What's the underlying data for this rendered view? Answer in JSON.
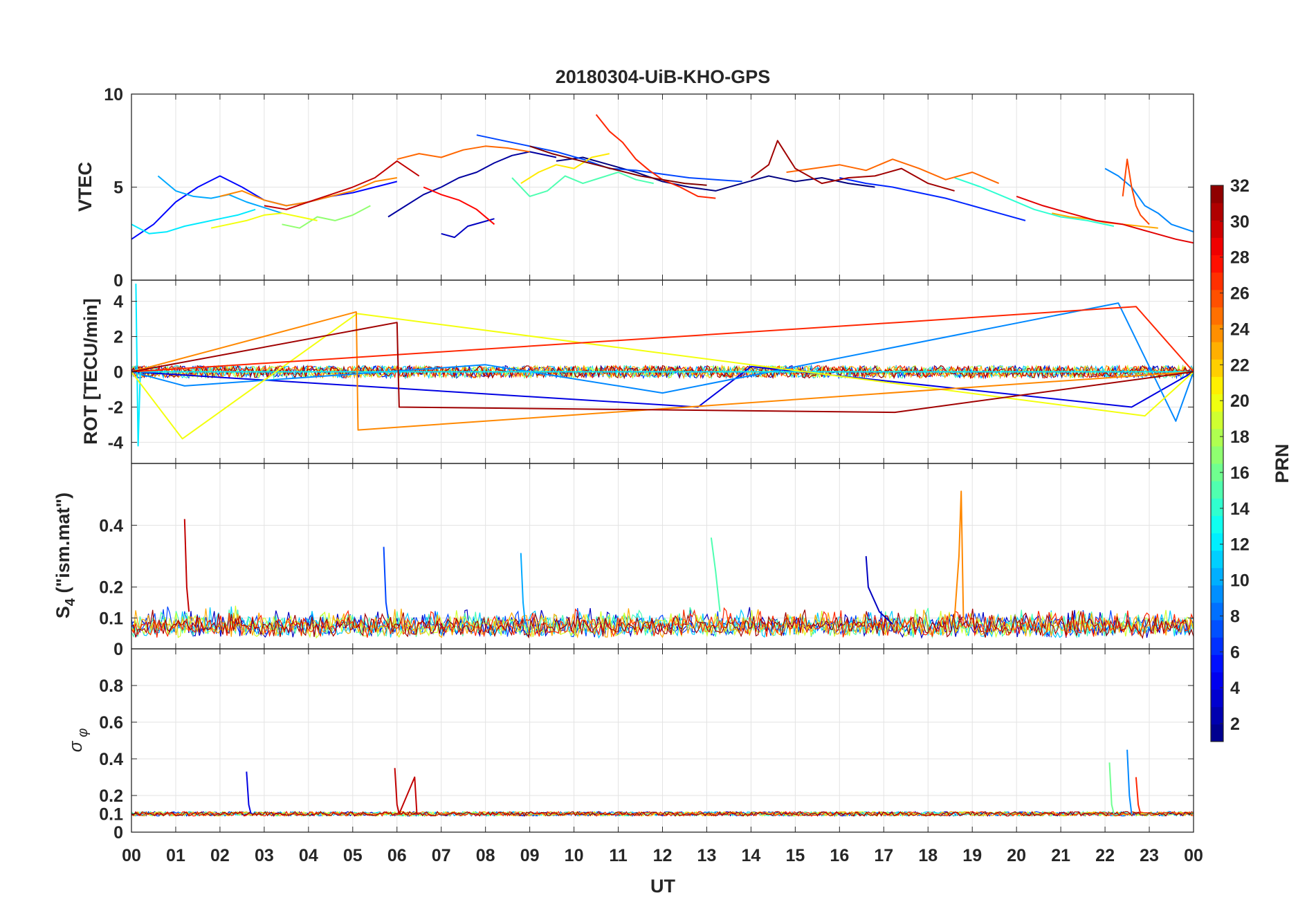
{
  "chart_data": {
    "type": "line",
    "title": "20180304-UiB-KHO-GPS",
    "xlabel": "UT",
    "x_ticks": [
      "00",
      "01",
      "02",
      "03",
      "04",
      "05",
      "06",
      "07",
      "08",
      "09",
      "10",
      "11",
      "12",
      "13",
      "14",
      "15",
      "16",
      "17",
      "18",
      "19",
      "20",
      "21",
      "22",
      "23",
      "00"
    ],
    "xlim": [
      0,
      24
    ],
    "colorbar": {
      "label": "PRN",
      "range": [
        1,
        32
      ],
      "ticks": [
        2,
        4,
        6,
        8,
        10,
        12,
        14,
        16,
        18,
        20,
        22,
        24,
        26,
        28,
        30,
        32
      ],
      "colormap": "jet",
      "colors": [
        "#00008f",
        "#0000ff",
        "#0080ff",
        "#00ffff",
        "#80ff80",
        "#ffff00",
        "#ff8000",
        "#ff0000",
        "#800000"
      ]
    },
    "panels": [
      {
        "id": "vtec",
        "ylabel": "VTEC",
        "ylim": [
          0,
          10
        ],
        "y_ticks": [
          0,
          5,
          10
        ],
        "series": [
          {
            "prn": 1,
            "x": [
              9.6,
              10.2,
              10.8,
              11.4,
              12.0,
              12.6,
              13.2,
              13.8,
              14.4,
              15.0,
              15.6,
              16.2,
              16.8
            ],
            "values": [
              6.4,
              6.6,
              6.2,
              5.8,
              5.3,
              5.0,
              4.8,
              5.2,
              5.6,
              5.3,
              5.5,
              5.2,
              5.0
            ]
          },
          {
            "prn": 2,
            "x": [
              5.8,
              6.2,
              6.6,
              7.0,
              7.4,
              7.8,
              8.2,
              8.6,
              9.0,
              9.6
            ],
            "values": [
              3.4,
              4.0,
              4.6,
              5.0,
              5.5,
              5.8,
              6.3,
              6.7,
              6.9,
              6.6
            ]
          },
          {
            "prn": 3,
            "x": [
              7.0,
              7.3,
              7.6,
              7.9,
              8.2
            ],
            "values": [
              2.5,
              2.3,
              2.9,
              3.1,
              3.3
            ]
          },
          {
            "prn": 5,
            "x": [
              0.0,
              0.5,
              1.0,
              1.5,
              2.0,
              2.5,
              3.0,
              3.5,
              4.0,
              4.5,
              5.0,
              5.5,
              6.0
            ],
            "values": [
              2.2,
              3.0,
              4.2,
              5.0,
              5.6,
              5.0,
              4.3,
              4.0,
              4.2,
              4.5,
              4.7,
              5.0,
              5.3
            ]
          },
          {
            "prn": 6,
            "x": [
              16.0,
              16.6,
              17.2,
              17.8,
              18.4,
              19.0,
              19.6,
              20.2
            ],
            "values": [
              5.5,
              5.2,
              5.0,
              4.7,
              4.4,
              4.0,
              3.6,
              3.2
            ]
          },
          {
            "prn": 7,
            "x": [
              7.8,
              8.4,
              9.0,
              9.6,
              10.2,
              10.8,
              11.4,
              12.0,
              12.6,
              13.2,
              13.8
            ],
            "values": [
              7.8,
              7.5,
              7.2,
              6.9,
              6.5,
              6.0,
              5.9,
              5.7,
              5.5,
              5.4,
              5.3
            ]
          },
          {
            "prn": 9,
            "x": [
              22.0,
              22.3,
              22.6,
              22.9,
              23.2,
              23.5,
              24.0
            ],
            "values": [
              6.0,
              5.6,
              5.0,
              4.0,
              3.6,
              3.0,
              2.6
            ]
          },
          {
            "prn": 10,
            "x": [
              0.6,
              1.0,
              1.4,
              1.8,
              2.2,
              2.6,
              3.0,
              3.4
            ],
            "values": [
              5.6,
              4.8,
              4.5,
              4.4,
              4.6,
              4.2,
              3.9,
              3.6
            ]
          },
          {
            "prn": 12,
            "x": [
              0.0,
              0.4,
              0.8,
              1.2,
              1.6,
              2.0,
              2.4,
              2.8
            ],
            "values": [
              3.0,
              2.5,
              2.6,
              2.9,
              3.1,
              3.3,
              3.5,
              3.8
            ]
          },
          {
            "prn": 14,
            "x": [
              18.6,
              19.2,
              19.8,
              20.4,
              21.0,
              21.6,
              22.2
            ],
            "values": [
              5.5,
              5.0,
              4.4,
              3.8,
              3.4,
              3.2,
              2.9
            ]
          },
          {
            "prn": 15,
            "x": [
              8.6,
              9.0,
              9.4,
              9.8,
              10.2,
              10.6,
              11.0,
              11.4,
              11.8
            ],
            "values": [
              5.5,
              4.5,
              4.8,
              5.6,
              5.2,
              5.5,
              5.8,
              5.4,
              5.2
            ]
          },
          {
            "prn": 17,
            "x": [
              3.4,
              3.8,
              4.2,
              4.6,
              5.0,
              5.4
            ],
            "values": [
              3.0,
              2.8,
              3.4,
              3.2,
              3.5,
              4.0
            ]
          },
          {
            "prn": 20,
            "x": [
              1.8,
              2.2,
              2.6,
              3.0,
              3.4,
              3.8,
              4.2
            ],
            "values": [
              2.8,
              3.0,
              3.2,
              3.5,
              3.6,
              3.4,
              3.2
            ]
          },
          {
            "prn": 21,
            "x": [
              8.8,
              9.2,
              9.6,
              10.0,
              10.4,
              10.8
            ],
            "values": [
              5.2,
              5.8,
              6.2,
              6.0,
              6.6,
              6.8
            ]
          },
          {
            "prn": 23,
            "x": [
              20.8,
              21.2,
              21.6,
              22.0,
              22.4,
              22.8,
              23.2
            ],
            "values": [
              3.6,
              3.4,
              3.3,
              3.1,
              3.0,
              2.9,
              2.8
            ]
          },
          {
            "prn": 24,
            "x": [
              2.0,
              2.5,
              3.0,
              3.5,
              4.0,
              4.5,
              5.0,
              5.5,
              6.0
            ],
            "values": [
              4.5,
              4.8,
              4.3,
              4.0,
              4.2,
              4.5,
              4.8,
              5.3,
              5.5
            ]
          },
          {
            "prn": 25,
            "x": [
              6.0,
              6.5,
              7.0,
              7.5,
              8.0,
              8.5,
              9.0
            ],
            "values": [
              6.5,
              6.8,
              6.6,
              7.0,
              7.2,
              7.1,
              6.9
            ]
          },
          {
            "prn": 25,
            "x": [
              14.8,
              15.4,
              16.0,
              16.6,
              17.2,
              17.8,
              18.4,
              19.0,
              19.6
            ],
            "values": [
              5.8,
              6.0,
              6.2,
              5.9,
              6.5,
              6.0,
              5.4,
              5.8,
              5.2
            ]
          },
          {
            "prn": 26,
            "x": [
              22.4,
              22.5,
              22.6,
              22.7,
              22.8,
              23.0
            ],
            "values": [
              4.5,
              6.5,
              5.0,
              4.0,
              3.5,
              3.0
            ]
          },
          {
            "prn": 27,
            "x": [
              10.5,
              10.8,
              11.1,
              11.4,
              11.7,
              12.0,
              12.4,
              12.8,
              13.2
            ],
            "values": [
              8.9,
              8.0,
              7.4,
              6.5,
              5.9,
              5.4,
              5.0,
              4.5,
              4.4
            ]
          },
          {
            "prn": 28,
            "x": [
              6.6,
              7.0,
              7.4,
              7.8,
              8.2
            ],
            "values": [
              5.0,
              4.6,
              4.3,
              3.8,
              3.0
            ]
          },
          {
            "prn": 29,
            "x": [
              20.0,
              20.6,
              21.2,
              21.8,
              22.4,
              23.0,
              23.6,
              24.0
            ],
            "values": [
              4.5,
              4.0,
              3.6,
              3.2,
              3.0,
              2.6,
              2.2,
              2.0
            ]
          },
          {
            "prn": 30,
            "x": [
              3.0,
              3.5,
              4.0,
              4.5,
              5.0,
              5.5,
              6.0,
              6.5
            ],
            "values": [
              4.0,
              3.8,
              4.2,
              4.6,
              5.0,
              5.5,
              6.4,
              5.6
            ]
          },
          {
            "prn": 31,
            "x": [
              14.0,
              14.4,
              14.6,
              15.0,
              15.6,
              16.2,
              16.8,
              17.4,
              18.0,
              18.6
            ],
            "values": [
              5.5,
              6.2,
              7.5,
              6.0,
              5.2,
              5.5,
              5.6,
              6.0,
              5.2,
              4.8
            ]
          },
          {
            "prn": 32,
            "x": [
              9.0,
              9.5,
              10.0,
              10.5,
              11.0,
              11.5,
              12.0,
              12.5,
              13.0
            ],
            "values": [
              7.2,
              6.8,
              6.5,
              6.2,
              5.9,
              5.6,
              5.4,
              5.2,
              5.1
            ]
          }
        ]
      },
      {
        "id": "rot",
        "ylabel": "ROT [TECU/min]",
        "ylim": [
          -5.2,
          5.2
        ],
        "y_ticks": [
          -4,
          -2,
          0,
          2,
          4
        ],
        "series": [
          {
            "prn": 4,
            "x": [
              0.0,
              12.8,
              14.0,
              22.6,
              24.0
            ],
            "values": [
              0.0,
              -2.0,
              0.3,
              -2.0,
              0.0
            ]
          },
          {
            "prn": 9,
            "x": [
              0.0,
              1.2,
              8.0,
              12.0,
              22.3,
              23.6,
              24.0
            ],
            "values": [
              0.0,
              -0.8,
              0.4,
              -1.2,
              3.9,
              -2.8,
              0.0
            ]
          },
          {
            "prn": 12,
            "x": [
              0.1,
              0.15,
              0.2,
              24.0
            ],
            "values": [
              5.0,
              -4.2,
              0.0,
              0.0
            ]
          },
          {
            "prn": 20,
            "x": [
              0.0,
              1.15,
              5.1,
              22.9,
              24.0
            ],
            "values": [
              0.0,
              -3.8,
              3.3,
              -2.5,
              0.0
            ]
          },
          {
            "prn": 24,
            "x": [
              0.0,
              5.08,
              5.12,
              24.0
            ],
            "values": [
              0.0,
              3.4,
              -3.3,
              0.0
            ]
          },
          {
            "prn": 27,
            "x": [
              0.0,
              17.3,
              22.7,
              24.0
            ],
            "values": [
              0.0,
              2.8,
              3.7,
              0.0
            ]
          },
          {
            "prn": 31,
            "x": [
              0.0,
              6.0,
              6.05,
              17.25,
              24.0
            ],
            "values": [
              0.0,
              2.8,
              -2.0,
              -2.3,
              0.0
            ]
          }
        ]
      },
      {
        "id": "s4",
        "ylabel": "S4 (\"ism.mat\")",
        "ylabel_main": "S",
        "ylabel_sub": "4",
        "ylabel_rest": " (\"ism.mat\")",
        "ylim": [
          0,
          0.6
        ],
        "y_ticks": [
          0,
          0.1,
          0.2,
          0.4
        ],
        "series": [
          {
            "prn": 24,
            "x": [
              18.6,
              18.65,
              18.7,
              18.75,
              18.8
            ],
            "values": [
              0.1,
              0.2,
              0.3,
              0.51,
              0.1
            ]
          },
          {
            "prn": 30,
            "x": [
              1.2,
              1.25,
              1.3
            ],
            "values": [
              0.42,
              0.2,
              0.12
            ]
          },
          {
            "prn": 15,
            "x": [
              13.1,
              13.2,
              13.3
            ],
            "values": [
              0.36,
              0.25,
              0.12
            ]
          },
          {
            "prn": 7,
            "x": [
              5.7,
              5.75,
              5.8
            ],
            "values": [
              0.33,
              0.15,
              0.1
            ]
          },
          {
            "prn": 10,
            "x": [
              8.8,
              8.85,
              8.9
            ],
            "values": [
              0.31,
              0.15,
              0.08
            ]
          },
          {
            "prn": 3,
            "x": [
              16.6,
              16.65,
              16.9,
              17.2
            ],
            "values": [
              0.3,
              0.2,
              0.12,
              0.08
            ]
          }
        ]
      },
      {
        "id": "sigma_phi",
        "ylabel": "σ φ",
        "ylabel_main": "σ",
        "ylabel_sub": "φ",
        "ylim": [
          0,
          1
        ],
        "y_ticks": [
          0,
          0.1,
          0.2,
          0.4,
          0.6,
          0.8
        ],
        "series": [
          {
            "prn": 9,
            "x": [
              22.5,
              22.55,
              22.6
            ],
            "values": [
              0.45,
              0.2,
              0.1
            ]
          },
          {
            "prn": 16,
            "x": [
              22.1,
              22.15,
              22.2
            ],
            "values": [
              0.38,
              0.15,
              0.1
            ]
          },
          {
            "prn": 30,
            "x": [
              5.95,
              6.0,
              6.05,
              6.4,
              6.45
            ],
            "values": [
              0.35,
              0.15,
              0.1,
              0.3,
              0.1
            ]
          },
          {
            "prn": 27,
            "x": [
              22.7,
              22.75,
              22.8
            ],
            "values": [
              0.3,
              0.15,
              0.1
            ]
          },
          {
            "prn": 4,
            "x": [
              2.6,
              2.65,
              2.7
            ],
            "values": [
              0.33,
              0.15,
              0.1
            ]
          }
        ]
      }
    ]
  }
}
